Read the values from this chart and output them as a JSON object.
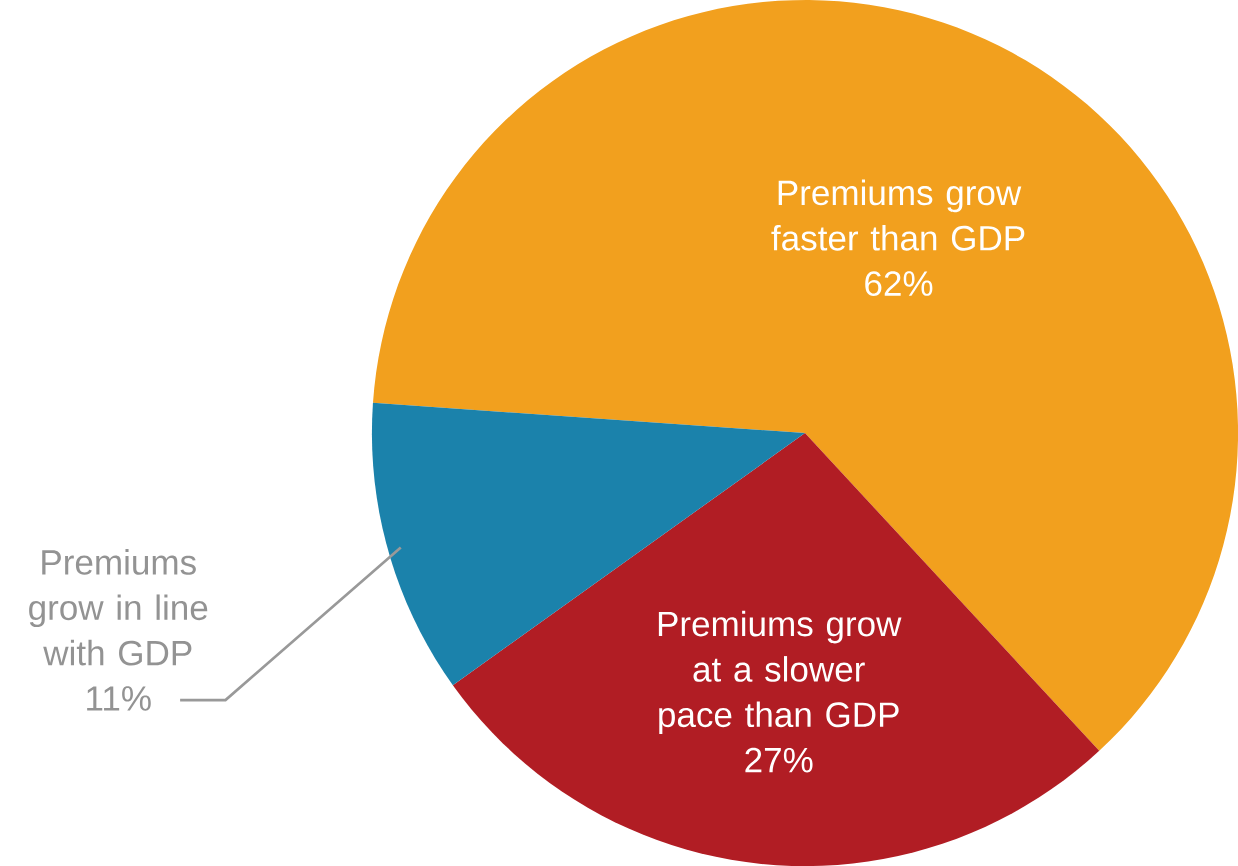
{
  "chart_data": {
    "type": "pie",
    "categories": [
      "Premiums grow faster than GDP",
      "Premiums grow at a slower pace than GDP",
      "Premiums grow in line with GDP"
    ],
    "values": [
      62,
      27,
      11
    ],
    "value_labels": [
      "62%",
      "27%",
      "11%"
    ],
    "colors": [
      "#f2a01e",
      "#b11d24",
      "#1b82ab"
    ]
  }
}
